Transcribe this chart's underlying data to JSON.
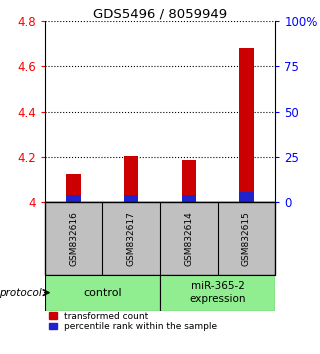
{
  "title": "GDS5496 / 8059949",
  "samples": [
    "GSM832616",
    "GSM832617",
    "GSM832614",
    "GSM832615"
  ],
  "red_values": [
    4.125,
    4.205,
    4.185,
    4.68
  ],
  "blue_values": [
    4.03,
    4.03,
    4.03,
    4.045
  ],
  "bar_bottom": 4.0,
  "ylim_left": [
    4.0,
    4.8
  ],
  "yticks_left": [
    4.0,
    4.2,
    4.4,
    4.6,
    4.8
  ],
  "ytick_labels_left": [
    "4",
    "4.2",
    "4.4",
    "4.6",
    "4.8"
  ],
  "ylim_right": [
    0,
    100
  ],
  "yticks_right": [
    0,
    25,
    50,
    75,
    100
  ],
  "ytick_labels_right": [
    "0",
    "25",
    "50",
    "75",
    "100%"
  ],
  "protocol_label": "protocol",
  "legend_items": [
    {
      "color": "#CC0000",
      "label": "transformed count"
    },
    {
      "color": "#2222CC",
      "label": "percentile rank within the sample"
    }
  ],
  "red_color": "#CC0000",
  "blue_color": "#2222CC",
  "bar_width": 0.25,
  "sample_box_color": "#C0C0C0",
  "group_box_color": "#90EE90",
  "background_color": "#ffffff"
}
